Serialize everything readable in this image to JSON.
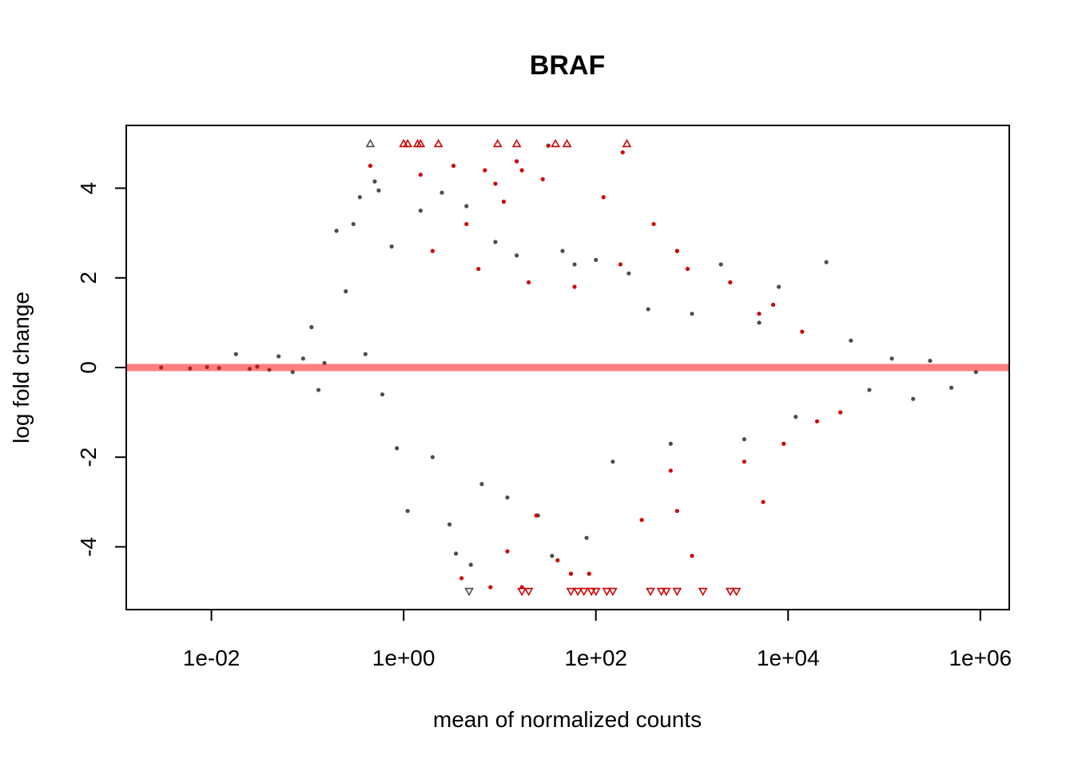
{
  "chart_data": {
    "type": "scatter",
    "title": "BRAF",
    "xlabel": "mean of normalized counts",
    "ylabel": "log fold change",
    "x_scale": "log10",
    "xlim": [
      0.0013,
      2000000
    ],
    "ylim": [
      -5.4,
      5.4
    ],
    "x_ticks": [
      {
        "value": 0.01,
        "label": "1e-02"
      },
      {
        "value": 1,
        "label": "1e+00"
      },
      {
        "value": 100,
        "label": "1e+02"
      },
      {
        "value": 10000,
        "label": "1e+04"
      },
      {
        "value": 1000000,
        "label": "1e+06"
      }
    ],
    "y_ticks": [
      {
        "value": -4,
        "label": "-4"
      },
      {
        "value": -2,
        "label": "-2"
      },
      {
        "value": 0,
        "label": "0"
      },
      {
        "value": 2,
        "label": "2"
      },
      {
        "value": 4,
        "label": "4"
      }
    ],
    "reference_line": {
      "y": 0,
      "color": "#ff0000",
      "opacity": 0.5
    },
    "colors": {
      "not_significant": "#4d4d4d",
      "significant": "#cc0000"
    },
    "grid": false,
    "legend": "none",
    "series": [
      {
        "points": [
          [
            0.003,
            0.0
          ],
          [
            0.006,
            -0.02
          ],
          [
            0.009,
            0.01
          ],
          [
            0.012,
            -0.01
          ],
          [
            0.018,
            0.3
          ],
          [
            0.025,
            -0.03
          ],
          [
            0.03,
            0.02
          ],
          [
            0.04,
            -0.05
          ],
          [
            0.05,
            0.25
          ],
          [
            0.07,
            -0.1
          ],
          [
            0.09,
            0.2
          ],
          [
            0.11,
            0.9
          ],
          [
            0.13,
            -0.5
          ],
          [
            0.15,
            0.1
          ],
          [
            0.2,
            3.05
          ],
          [
            0.25,
            1.7
          ],
          [
            0.3,
            3.2
          ],
          [
            0.35,
            3.8
          ],
          [
            0.4,
            0.3
          ],
          [
            0.5,
            4.15
          ],
          [
            0.55,
            3.95
          ],
          [
            0.6,
            -0.6
          ],
          [
            0.75,
            2.7
          ],
          [
            0.85,
            -1.8
          ],
          [
            1.1,
            -3.2
          ],
          [
            1.5,
            3.5
          ],
          [
            2.0,
            -2.0
          ],
          [
            2.5,
            3.9
          ],
          [
            3.0,
            -3.5
          ],
          [
            3.5,
            -4.15
          ],
          [
            4.5,
            3.6
          ],
          [
            5.0,
            -4.4
          ],
          [
            6.5,
            -2.6
          ],
          [
            9.0,
            2.8
          ],
          [
            12.0,
            -2.9
          ],
          [
            15.0,
            2.5
          ],
          [
            25.0,
            -3.3
          ],
          [
            35.0,
            -4.2
          ],
          [
            45.0,
            2.6
          ],
          [
            60.0,
            2.3
          ],
          [
            80.0,
            -3.8
          ],
          [
            100.0,
            2.4
          ],
          [
            150.0,
            -2.1
          ],
          [
            220.0,
            2.1
          ],
          [
            350.0,
            1.3
          ],
          [
            600.0,
            -1.7
          ],
          [
            1000.0,
            1.2
          ],
          [
            2000.0,
            2.3
          ],
          [
            3500.0,
            -1.6
          ],
          [
            5000.0,
            1.0
          ],
          [
            8000.0,
            1.8
          ],
          [
            12000.0,
            -1.1
          ],
          [
            25000.0,
            2.35
          ],
          [
            45000.0,
            0.6
          ],
          [
            70000.0,
            -0.5
          ],
          [
            120000.0,
            0.2
          ],
          [
            200000.0,
            -0.7
          ],
          [
            300000.0,
            0.15
          ],
          [
            500000.0,
            -0.45
          ],
          [
            900000.0,
            -0.1
          ],
          [
            0.45,
            5.0
          ],
          [
            4.8,
            -5.0
          ]
        ]
      },
      {
        "points": [
          [
            1.0,
            5.0
          ],
          [
            1.1,
            5.0
          ],
          [
            1.4,
            5.0
          ],
          [
            1.5,
            5.0
          ],
          [
            2.3,
            5.0
          ],
          [
            9.5,
            5.0
          ],
          [
            15.0,
            5.0
          ],
          [
            38.0,
            5.0
          ],
          [
            50.0,
            5.0
          ],
          [
            210.0,
            5.0
          ],
          [
            17.0,
            -5.0
          ],
          [
            20.0,
            -5.0
          ],
          [
            55.0,
            -5.0
          ],
          [
            65.0,
            -5.0
          ],
          [
            75.0,
            -5.0
          ],
          [
            90.0,
            -5.0
          ],
          [
            100.0,
            -5.0
          ],
          [
            130.0,
            -5.0
          ],
          [
            150.0,
            -5.0
          ],
          [
            370.0,
            -5.0
          ],
          [
            480.0,
            -5.0
          ],
          [
            540.0,
            -5.0
          ],
          [
            700.0,
            -5.0
          ],
          [
            1300.0,
            -5.0
          ],
          [
            2500.0,
            -5.0
          ],
          [
            2900.0,
            -5.0
          ],
          [
            0.45,
            4.5
          ],
          [
            1.5,
            4.3
          ],
          [
            3.3,
            4.5
          ],
          [
            7.0,
            4.4
          ],
          [
            9.0,
            4.1
          ],
          [
            15.0,
            4.6
          ],
          [
            17.0,
            4.4
          ],
          [
            28.0,
            4.2
          ],
          [
            32.0,
            4.95
          ],
          [
            190.0,
            4.8
          ],
          [
            11.0,
            3.7
          ],
          [
            4.5,
            3.2
          ],
          [
            120.0,
            3.8
          ],
          [
            400.0,
            3.2
          ],
          [
            700.0,
            2.6
          ],
          [
            2.0,
            2.6
          ],
          [
            6.0,
            2.2
          ],
          [
            20.0,
            1.9
          ],
          [
            60.0,
            1.8
          ],
          [
            180.0,
            2.3
          ],
          [
            900.0,
            2.2
          ],
          [
            2500.0,
            1.9
          ],
          [
            7000.0,
            1.4
          ],
          [
            4.0,
            -4.7
          ],
          [
            8.0,
            -4.9
          ],
          [
            12.0,
            -4.1
          ],
          [
            17.0,
            -4.9
          ],
          [
            24.0,
            -3.3
          ],
          [
            40.0,
            -4.3
          ],
          [
            55.0,
            -4.6
          ],
          [
            85.0,
            -4.6
          ],
          [
            300.0,
            -3.4
          ],
          [
            600.0,
            -2.3
          ],
          [
            700.0,
            -3.2
          ],
          [
            1000.0,
            -4.2
          ],
          [
            3500.0,
            -2.1
          ],
          [
            5500.0,
            -3.0
          ],
          [
            9000.0,
            -1.7
          ],
          [
            20000.0,
            -1.2
          ],
          [
            35000.0,
            -1.0
          ],
          [
            14000.0,
            0.8
          ],
          [
            5000.0,
            1.2
          ]
        ]
      }
    ]
  }
}
